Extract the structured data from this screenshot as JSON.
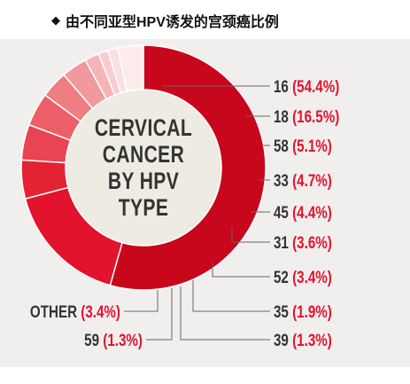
{
  "header": {
    "bullet_icon": "black-diamond-icon",
    "title": "由不同亚型HPV诱发的宫颈癌比例"
  },
  "colors": {
    "panel_bg": "#f1efee",
    "center_bg": "#eeebe3",
    "text_dark": "#333333",
    "text_red": "#e2132d",
    "leader": "#666666"
  },
  "chart_data": {
    "type": "pie",
    "title": "",
    "center_label": [
      "CERVICAL",
      "CANCER",
      "BY HPV",
      "TYPE"
    ],
    "slices": [
      {
        "type": "16",
        "pct_label": "(54.4%)",
        "value": 54.4,
        "color": "#c8061c"
      },
      {
        "type": "18",
        "pct_label": "(16.5%)",
        "value": 16.5,
        "color": "#e2132d"
      },
      {
        "type": "58",
        "pct_label": "(5.1%)",
        "value": 5.1,
        "color": "#e32334"
      },
      {
        "type": "33",
        "pct_label": "(4.7%)",
        "value": 4.7,
        "color": "#e84452"
      },
      {
        "type": "45",
        "pct_label": "(4.4%)",
        "value": 4.4,
        "color": "#ec5e68"
      },
      {
        "type": "31",
        "pct_label": "(3.6%)",
        "value": 3.6,
        "color": "#ef7d84"
      },
      {
        "type": "52",
        "pct_label": "(3.4%)",
        "value": 3.4,
        "color": "#f2999e"
      },
      {
        "type": "35",
        "pct_label": "(1.9%)",
        "value": 1.9,
        "color": "#f5b5b8"
      },
      {
        "type": "39",
        "pct_label": "(1.3%)",
        "value": 1.3,
        "color": "#f8cdcf"
      },
      {
        "type": "59",
        "pct_label": "(1.3%)",
        "value": 1.3,
        "color": "#fae0e1"
      },
      {
        "type": "OTHER",
        "pct_label": "(3.4%)",
        "value": 3.4,
        "color": "#fcecec"
      }
    ]
  }
}
